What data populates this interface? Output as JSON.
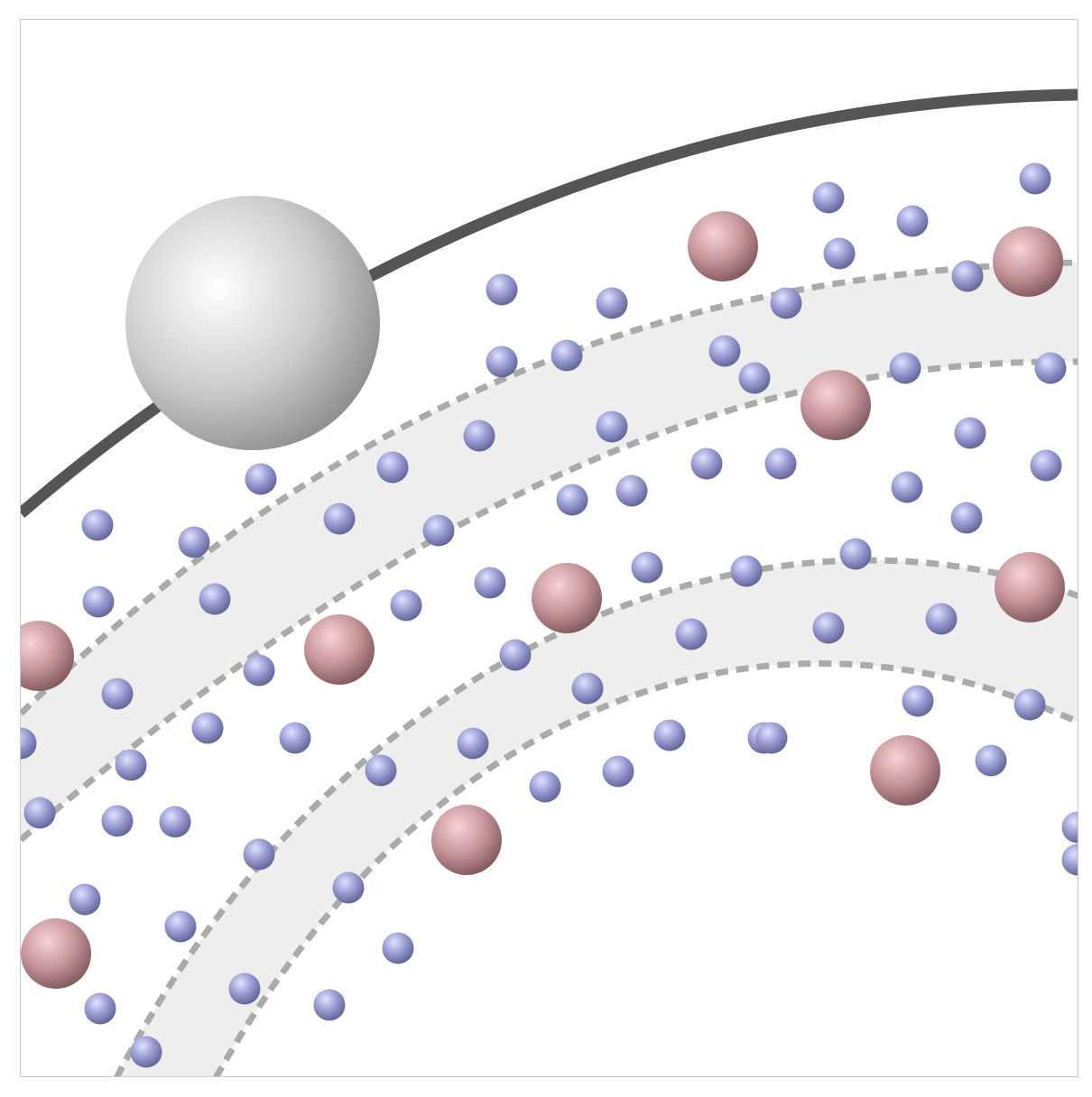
{
  "colors": {
    "background": "#ffffff",
    "frame_border": "#c8c8c8",
    "band_fill": "#eeeeee",
    "band_dash": "#aaaaaa",
    "trajectory": "#555555",
    "large_sphere": "#cfcfcf",
    "medium_sphere": "#b88a8e",
    "small_sphere": "#8f93c6"
  },
  "diagram": {
    "elements": [
      "trajectory-line",
      "large-gray-sphere",
      "shaded-bands",
      "pink-medium-spheres",
      "blue-small-spheres"
    ]
  }
}
